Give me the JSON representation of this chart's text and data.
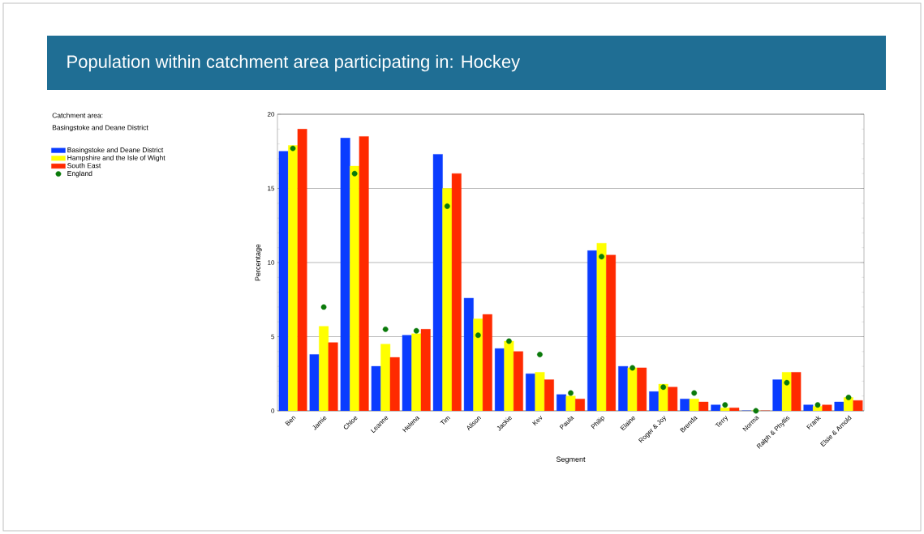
{
  "chart_data": {
    "type": "bar",
    "title": "Population within catchment area participating in: Hockey",
    "legend_title": "Catchment area:",
    "annotations": [
      "Basingstoke and Deane District"
    ],
    "xlabel": "Segment",
    "ylabel": "Percentage",
    "categories": [
      "Ben",
      "Jamie",
      "Chloe",
      "Leanne",
      "Helena",
      "Tim",
      "Alison",
      "Jackie",
      "Kev",
      "Paula",
      "Philip",
      "Elaine",
      "Roger & Joy",
      "Brenda",
      "Terry",
      "Norma",
      "Ralph & Phyllis",
      "Frank",
      "Elsie & Arnold"
    ],
    "series": [
      {
        "name": "Basingstoke and Deane District",
        "color": "#0a3cff",
        "values": [
          17.5,
          3.8,
          18.4,
          3.0,
          5.1,
          17.3,
          7.6,
          4.2,
          2.5,
          1.1,
          10.8,
          3.0,
          1.3,
          0.8,
          0.4,
          0,
          2.1,
          0.4,
          0.6
        ]
      },
      {
        "name": "Hampshire and the Isle of Wight",
        "color": "#ffff00",
        "values": [
          17.9,
          5.7,
          16.5,
          4.5,
          5.2,
          15.0,
          6.2,
          4.7,
          2.6,
          1.0,
          11.3,
          2.9,
          1.8,
          0.8,
          0.2,
          0,
          2.6,
          0.3,
          0.9
        ]
      },
      {
        "name": "South East",
        "color": "#ff2a00",
        "values": [
          19.0,
          4.6,
          18.5,
          3.6,
          5.5,
          16.0,
          6.5,
          4.0,
          2.1,
          0.8,
          10.5,
          2.9,
          1.6,
          0.6,
          0.2,
          0,
          2.6,
          0.4,
          0.7
        ]
      },
      {
        "name": "England",
        "type": "scatter",
        "color": "#0a7a0a",
        "values": [
          17.7,
          7.0,
          16.0,
          5.5,
          5.4,
          13.8,
          5.1,
          4.7,
          3.8,
          1.2,
          10.4,
          2.9,
          1.6,
          1.2,
          0.4,
          0.0,
          1.9,
          0.4,
          0.9
        ]
      }
    ],
    "ylim": [
      0,
      20
    ],
    "yticks": [
      0,
      5,
      10,
      15,
      20
    ],
    "grid": "y",
    "legend": "top left"
  }
}
